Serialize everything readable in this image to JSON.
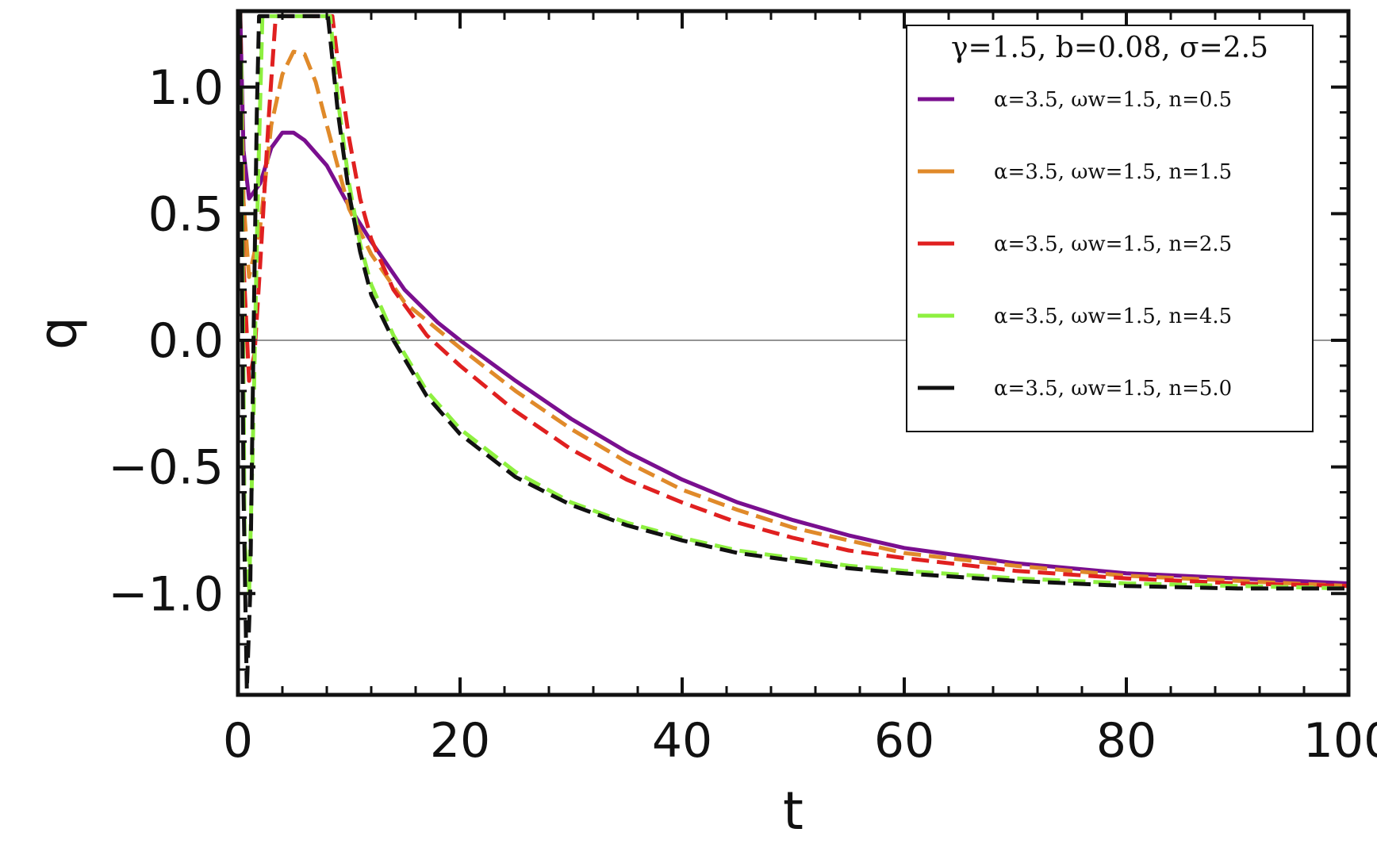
{
  "chart_data": {
    "type": "line",
    "xlabel": "t",
    "ylabel": "q",
    "xlim": [
      0,
      100
    ],
    "ylim": [
      -1.4,
      1.3
    ],
    "x_ticks": [
      0,
      20,
      40,
      60,
      80,
      100
    ],
    "x_tick_labels": [
      "0",
      "20",
      "40",
      "60",
      "80",
      "100"
    ],
    "y_ticks": [
      1.0,
      0.5,
      0.0,
      -0.5,
      -1.0
    ],
    "y_tick_labels": [
      "1.0",
      "0.5",
      "0.0",
      "−0.5",
      "−1.0"
    ],
    "zero_line": true,
    "frame": true,
    "legend": {
      "placement": "top-right",
      "title": "γ=1.5, b=0.08, σ=2.5",
      "entries": [
        "α=3.5, ωw=1.5, n=0.5",
        "α=3.5, ωw=1.5, n=1.5",
        "α=3.5, ωw=1.5, n=2.5",
        "α=3.5, ωw=1.5, n=4.5",
        "α=3.5, ωw=1.5, n=5.0"
      ]
    },
    "series": [
      {
        "name": "α=3.5, ωw=1.5, n=0.5",
        "color": "#7a0f8f",
        "dash": "solid",
        "points": [
          [
            0.2,
            1.3
          ],
          [
            0.5,
            0.75
          ],
          [
            1,
            0.56
          ],
          [
            2,
            0.62
          ],
          [
            3,
            0.76
          ],
          [
            4,
            0.82
          ],
          [
            5,
            0.82
          ],
          [
            6,
            0.79
          ],
          [
            8,
            0.69
          ],
          [
            10,
            0.53
          ],
          [
            12,
            0.39
          ],
          [
            15,
            0.2
          ],
          [
            18,
            0.07
          ],
          [
            20,
            0.0
          ],
          [
            25,
            -0.16
          ],
          [
            30,
            -0.31
          ],
          [
            35,
            -0.44
          ],
          [
            40,
            -0.55
          ],
          [
            45,
            -0.64
          ],
          [
            50,
            -0.71
          ],
          [
            55,
            -0.77
          ],
          [
            60,
            -0.82
          ],
          [
            70,
            -0.88
          ],
          [
            80,
            -0.92
          ],
          [
            90,
            -0.94
          ],
          [
            100,
            -0.96
          ]
        ]
      },
      {
        "name": "α=3.5, ωw=1.5, n=1.5",
        "color": "#e08a2a",
        "dash": "dashed",
        "points": [
          [
            0.2,
            1.3
          ],
          [
            0.5,
            0.55
          ],
          [
            1,
            0.25
          ],
          [
            2,
            0.45
          ],
          [
            3,
            0.85
          ],
          [
            4,
            1.05
          ],
          [
            5,
            1.14
          ],
          [
            6,
            1.13
          ],
          [
            7,
            1.02
          ],
          [
            8,
            0.85
          ],
          [
            10,
            0.52
          ],
          [
            12,
            0.34
          ],
          [
            15,
            0.15
          ],
          [
            20,
            -0.03
          ],
          [
            25,
            -0.2
          ],
          [
            30,
            -0.35
          ],
          [
            35,
            -0.48
          ],
          [
            40,
            -0.59
          ],
          [
            45,
            -0.67
          ],
          [
            50,
            -0.74
          ],
          [
            55,
            -0.79
          ],
          [
            60,
            -0.84
          ],
          [
            70,
            -0.89
          ],
          [
            80,
            -0.93
          ],
          [
            90,
            -0.95
          ],
          [
            100,
            -0.97
          ]
        ]
      },
      {
        "name": "α=3.5, ωw=1.5, n=2.5",
        "color": "#e02020",
        "dash": "dashed",
        "points": [
          [
            0.2,
            1.3
          ],
          [
            0.5,
            0.3
          ],
          [
            1,
            -0.16
          ],
          [
            1.5,
            -0.05
          ],
          [
            2,
            0.3
          ],
          [
            2.8,
            0.9
          ],
          [
            3.4,
            1.28
          ],
          [
            8.5,
            1.28
          ],
          [
            9,
            1.1
          ],
          [
            10,
            0.8
          ],
          [
            11,
            0.56
          ],
          [
            12,
            0.4
          ],
          [
            14,
            0.2
          ],
          [
            17,
            0.02
          ],
          [
            20,
            -0.1
          ],
          [
            25,
            -0.28
          ],
          [
            30,
            -0.43
          ],
          [
            35,
            -0.55
          ],
          [
            40,
            -0.64
          ],
          [
            45,
            -0.72
          ],
          [
            50,
            -0.78
          ],
          [
            55,
            -0.83
          ],
          [
            60,
            -0.86
          ],
          [
            70,
            -0.91
          ],
          [
            80,
            -0.94
          ],
          [
            90,
            -0.96
          ],
          [
            100,
            -0.97
          ]
        ]
      },
      {
        "name": "α=3.5, ωw=1.5, n=4.5",
        "color": "#8ef040",
        "dash": "dashed",
        "points": [
          [
            0.3,
            1.1
          ],
          [
            0.6,
            -0.8
          ],
          [
            1,
            -1.0
          ],
          [
            1.4,
            -0.3
          ],
          [
            1.8,
            0.6
          ],
          [
            2.2,
            1.28
          ],
          [
            8.3,
            1.28
          ],
          [
            9,
            0.95
          ],
          [
            10,
            0.62
          ],
          [
            11,
            0.38
          ],
          [
            12,
            0.22
          ],
          [
            14,
            0.02
          ],
          [
            17,
            -0.2
          ],
          [
            20,
            -0.35
          ],
          [
            25,
            -0.52
          ],
          [
            30,
            -0.64
          ],
          [
            35,
            -0.72
          ],
          [
            40,
            -0.78
          ],
          [
            45,
            -0.83
          ],
          [
            50,
            -0.86
          ],
          [
            55,
            -0.89
          ],
          [
            60,
            -0.91
          ],
          [
            70,
            -0.94
          ],
          [
            80,
            -0.96
          ],
          [
            90,
            -0.97
          ],
          [
            100,
            -0.98
          ]
        ]
      },
      {
        "name": "α=3.5, ωw=1.5, n=5.0",
        "color": "#111111",
        "dash": "dashed",
        "points": [
          [
            0.2,
            1.3
          ],
          [
            0.5,
            -0.6
          ],
          [
            0.8,
            -1.38
          ],
          [
            1.1,
            -1.0
          ],
          [
            1.4,
            0.0
          ],
          [
            1.7,
            0.9
          ],
          [
            1.9,
            1.28
          ],
          [
            8.1,
            1.28
          ],
          [
            9,
            0.9
          ],
          [
            10,
            0.58
          ],
          [
            11,
            0.35
          ],
          [
            12,
            0.18
          ],
          [
            14,
            0.0
          ],
          [
            17,
            -0.22
          ],
          [
            20,
            -0.37
          ],
          [
            25,
            -0.54
          ],
          [
            30,
            -0.65
          ],
          [
            35,
            -0.73
          ],
          [
            40,
            -0.79
          ],
          [
            45,
            -0.84
          ],
          [
            50,
            -0.87
          ],
          [
            55,
            -0.9
          ],
          [
            60,
            -0.92
          ],
          [
            70,
            -0.95
          ],
          [
            80,
            -0.97
          ],
          [
            90,
            -0.98
          ],
          [
            100,
            -0.98
          ]
        ]
      }
    ]
  }
}
